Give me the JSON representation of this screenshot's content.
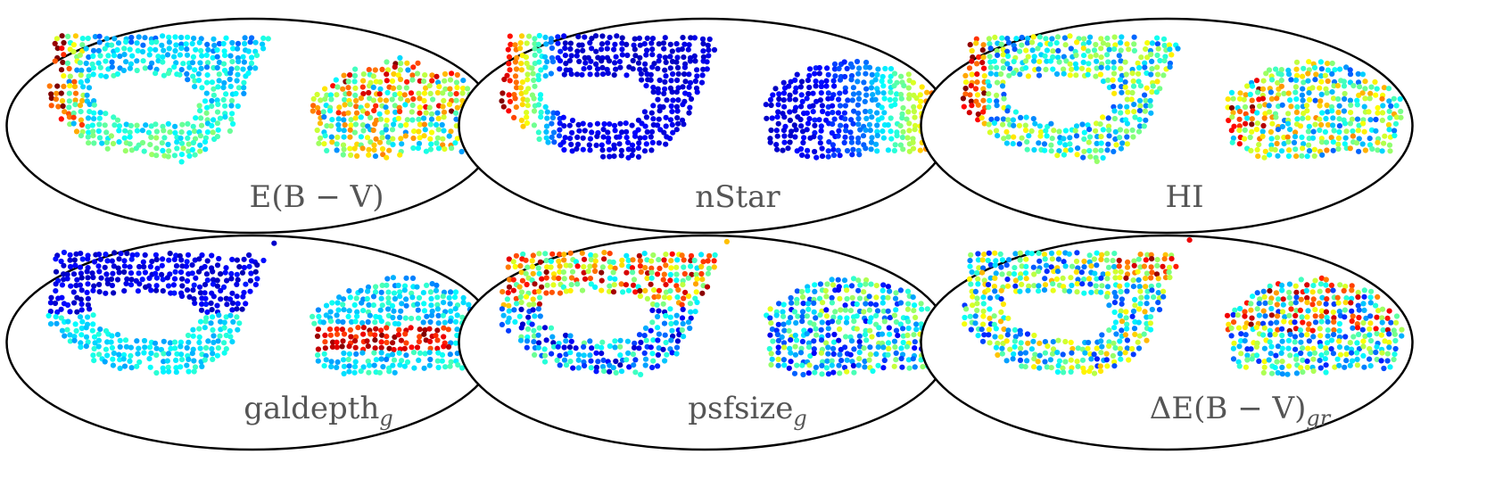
{
  "chart_data": {
    "type": "heatmap",
    "projection": "Mollweide",
    "layout": {
      "rows": 2,
      "columns": 3
    },
    "colormap": "jet",
    "panels": [
      {
        "id": "ebv",
        "label": "E(B − V)",
        "subscript": ""
      },
      {
        "id": "nstar",
        "label": "nStar",
        "subscript": ""
      },
      {
        "id": "hi",
        "label": "HI",
        "subscript": ""
      },
      {
        "id": "galdepth",
        "label": "galdepth",
        "subscript": "g"
      },
      {
        "id": "psfsize",
        "label": "psfsize",
        "subscript": "g"
      },
      {
        "id": "debv",
        "label": "ΔE(B − V)",
        "subscript": "gr"
      }
    ]
  }
}
